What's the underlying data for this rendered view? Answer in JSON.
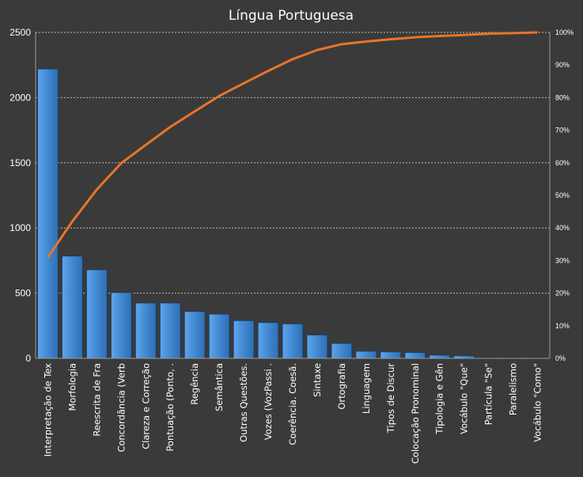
{
  "chart_data": {
    "type": "bar",
    "title": "Língua Portuguesa",
    "xlabel": "",
    "ylabel": "",
    "ylim": [
      0,
      2500
    ],
    "yticks": [
      0,
      500,
      1000,
      1500,
      2000,
      2500
    ],
    "y2lim": [
      0,
      100
    ],
    "y2ticks": [
      "0%",
      "10%",
      "20%",
      "30%",
      "40%",
      "50%",
      "60%",
      "70%",
      "80%",
      "90%",
      "100%"
    ],
    "grid": true,
    "legend": "none",
    "categories": [
      "Interpretação de Tex",
      "Morfologia",
      "Reescrita de Fra",
      "Concordância (Verb",
      "Clareza e Correção",
      "Pontuação (Ponto, .",
      "Regência",
      "Semântica",
      "Outras Questões.",
      "Vozes (VozPassi .",
      "Coerência. Coesã.",
      "Sintaxe",
      "Ortografia",
      "Linguagem",
      "Tipos de Discur",
      "Colocação Pronominal",
      "Tipologia e Gên",
      "Vocábulo \"Que\"",
      "Partícula \"Se\"",
      "Paralelismo",
      "Vocábulo \"Como\""
    ],
    "series": [
      {
        "type": "bar",
        "axis": "left",
        "color": "#3f86cf",
        "values": [
          2220,
          785,
          680,
          505,
          425,
          425,
          360,
          340,
          290,
          275,
          265,
          180,
          115,
          55,
          50,
          45,
          25,
          20,
          5,
          3,
          2
        ]
      },
      {
        "type": "line",
        "axis": "right",
        "color": "#e8742a",
        "values": [
          31.0,
          42.0,
          51.8,
          59.9,
          65.5,
          71.0,
          75.8,
          80.5,
          84.4,
          88.2,
          91.8,
          94.6,
          96.4,
          97.2,
          97.9,
          98.5,
          98.9,
          99.2,
          99.6,
          99.8,
          100.0
        ]
      }
    ]
  }
}
